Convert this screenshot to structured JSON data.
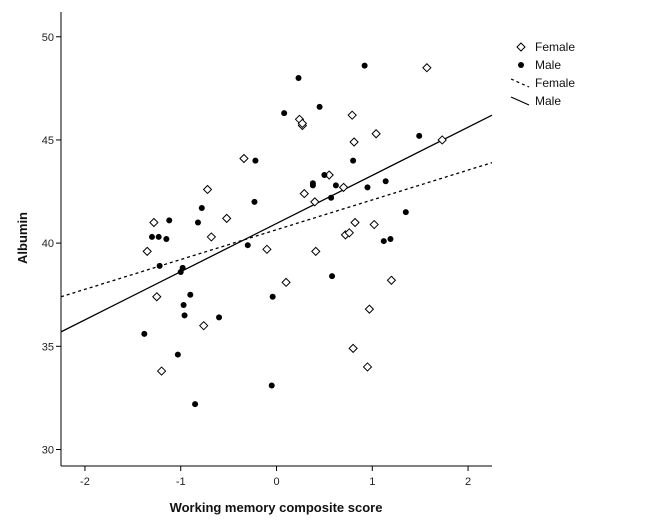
{
  "chart_data": {
    "type": "scatter",
    "title": "",
    "xlabel": "Working memory composite score",
    "ylabel": "Albumin",
    "xlim": [
      -2.25,
      2.25
    ],
    "ylim": [
      29.2,
      51.2
    ],
    "xticks": [
      -2,
      -1,
      0,
      1,
      2
    ],
    "yticks": [
      30,
      35,
      40,
      45,
      50
    ],
    "grid": false,
    "legend_position": "top-right",
    "series": [
      {
        "name": "Female",
        "marker": "diamond-open",
        "color": "#000000",
        "x": [
          -1.35,
          -1.28,
          -1.25,
          -1.2,
          -0.72,
          -0.68,
          -0.76,
          -0.52,
          -0.34,
          -0.1,
          0.1,
          0.24,
          0.27,
          0.27,
          0.29,
          0.4,
          0.41,
          0.55,
          0.7,
          0.72,
          0.76,
          0.8,
          0.81,
          0.82,
          0.79,
          0.95,
          0.97,
          1.02,
          1.04,
          1.2,
          1.57,
          1.73
        ],
        "y": [
          39.6,
          41.0,
          37.4,
          33.8,
          42.6,
          40.3,
          36.0,
          41.2,
          44.1,
          39.7,
          38.1,
          46.0,
          45.7,
          45.8,
          42.4,
          42.0,
          39.6,
          43.3,
          42.7,
          40.4,
          40.5,
          34.9,
          44.9,
          41.0,
          46.2,
          34.0,
          36.8,
          40.9,
          45.3,
          38.2,
          48.5,
          45.0
        ]
      },
      {
        "name": "Male",
        "marker": "circle-filled",
        "color": "#000000",
        "x": [
          -1.38,
          -1.3,
          -1.23,
          -1.22,
          -1.15,
          -1.12,
          -1.03,
          -1.0,
          -0.98,
          -0.97,
          -0.96,
          -0.9,
          -0.82,
          -0.78,
          -0.6,
          -0.3,
          -0.22,
          -0.23,
          -0.04,
          0.08,
          0.23,
          0.38,
          0.38,
          0.45,
          0.5,
          0.57,
          0.58,
          0.62,
          0.8,
          0.92,
          0.95,
          1.12,
          1.14,
          1.19,
          1.35,
          1.49
        ],
        "y": [
          35.6,
          40.3,
          40.3,
          38.9,
          40.2,
          41.1,
          34.6,
          38.6,
          38.8,
          37.0,
          36.5,
          37.5,
          41.0,
          41.7,
          36.4,
          39.9,
          44.0,
          42.0,
          37.4,
          46.3,
          48.0,
          42.8,
          42.9,
          46.6,
          43.3,
          42.2,
          38.4,
          42.8,
          44.0,
          48.6,
          42.7,
          40.1,
          43.0,
          40.2,
          41.5,
          45.2
        ]
      },
      {
        "name": "Male",
        "marker": "circle-filled",
        "color": "#000000",
        "x": [
          -0.85,
          -0.05
        ],
        "y": [
          32.2,
          33.1
        ]
      }
    ],
    "fit_lines": [
      {
        "name": "Female",
        "style": "dashed",
        "x": [
          -2.25,
          2.25
        ],
        "y": [
          37.4,
          43.9
        ]
      },
      {
        "name": "Male",
        "style": "solid",
        "x": [
          -2.25,
          2.25
        ],
        "y": [
          35.7,
          46.2
        ]
      }
    ],
    "legend": [
      {
        "label": "Female",
        "symbol": "diamond-open"
      },
      {
        "label": "Male",
        "symbol": "circle-filled"
      },
      {
        "label": "Female",
        "symbol": "dashed-line"
      },
      {
        "label": "Male",
        "symbol": "solid-line"
      }
    ]
  }
}
